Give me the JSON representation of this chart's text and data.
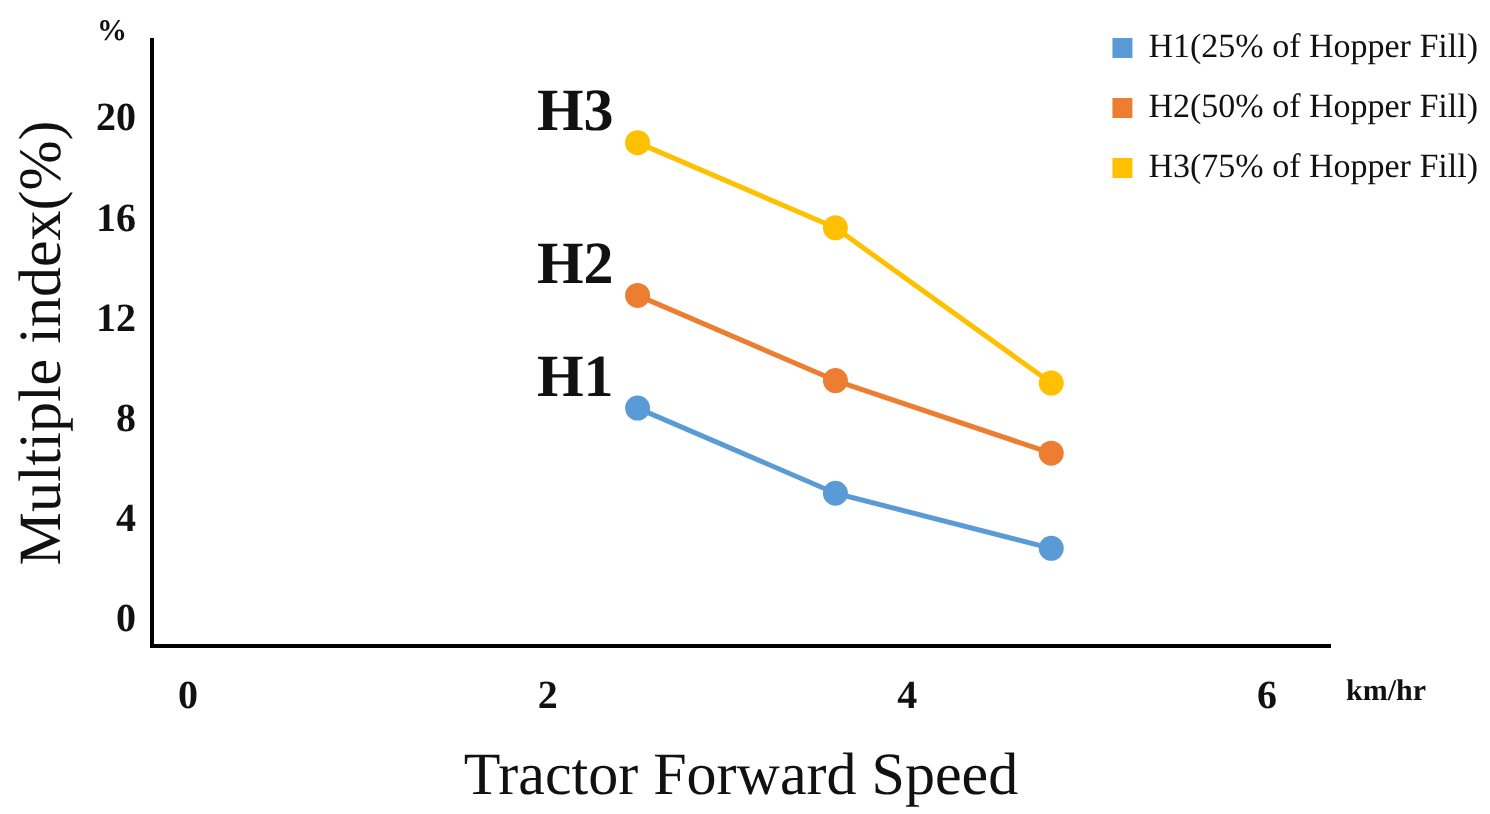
{
  "chart_data": {
    "type": "line",
    "xlabel": "Tractor Forward Speed",
    "ylabel": "Multiple index(%)",
    "x": [
      2.5,
      3.6,
      4.8
    ],
    "series": [
      {
        "name": "H1(25% of Hopper Fill)",
        "color": "#5b9bd5",
        "values": [
          8.5,
          5.1,
          2.9
        ]
      },
      {
        "name": "H2(50% of Hopper Fill)",
        "color": "#ed7d31",
        "values": [
          13.0,
          9.6,
          6.7
        ]
      },
      {
        "name": "H3(75% of Hopper Fill)",
        "color": "#ffc000",
        "values": [
          19.1,
          15.7,
          9.5
        ]
      }
    ],
    "xlim": [
      -0.2,
      6.35
    ],
    "xticks": [
      0,
      2,
      4,
      6
    ],
    "ylim": [
      -1,
      23.2
    ],
    "yticks": [
      0,
      4,
      8,
      12,
      16,
      20
    ],
    "grid": false,
    "legend": "top right",
    "marker": "circle",
    "line_style": "solid",
    "annotations": [
      "H1",
      "H2",
      "H3",
      "%",
      "km/hr"
    ]
  }
}
